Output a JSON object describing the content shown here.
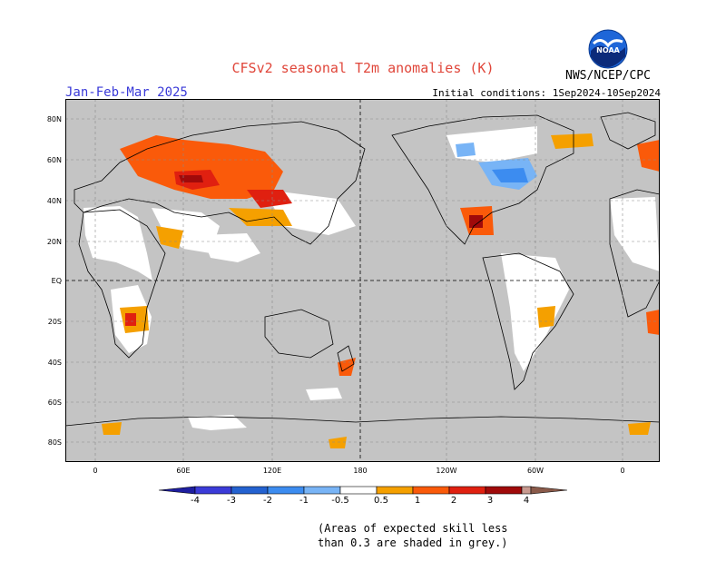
{
  "header": {
    "title": "CFSv2  seasonal  T2m  anomalies  (K)",
    "season": "Jan-Feb-Mar 2025",
    "initial_conditions": "Initial conditions:  1Sep2024-10Sep2024",
    "agency": "NWS/NCEP/CPC",
    "logo_text": "NOAA"
  },
  "map": {
    "lat_labels": [
      "80N",
      "60N",
      "40N",
      "20N",
      "EQ",
      "20S",
      "40S",
      "60S",
      "80S"
    ],
    "lon_labels": [
      "0",
      "60E",
      "120E",
      "180",
      "120W",
      "60W",
      "0"
    ],
    "background_color": "#c4c4c4",
    "skill_color": "#ffffff",
    "anomaly_regions": [
      "Eastern Europe / Russia warm",
      "Central Asia warm",
      "Northern Canada cold",
      "Great Lakes cold",
      "Gulf of Mexico warm",
      "Southern Africa warm",
      "Antarctic coast warm"
    ]
  },
  "colorbar": {
    "labels": [
      "-4",
      "-3",
      "-2",
      "-1",
      "-0.5",
      "0.5",
      "1",
      "2",
      "3",
      "4"
    ],
    "colors": [
      "#1e1ea0",
      "#3b3bd8",
      "#2462d0",
      "#3c8cf0",
      "#78b4f6",
      "#ffffff",
      "#f5a000",
      "#fa5a0a",
      "#e02010",
      "#a00a0a",
      "#c89a90",
      "#8a5a4a"
    ]
  },
  "footnote": {
    "line1": "(Areas of expected skill less",
    "line2": "than 0.3 are shaded in grey.)"
  }
}
